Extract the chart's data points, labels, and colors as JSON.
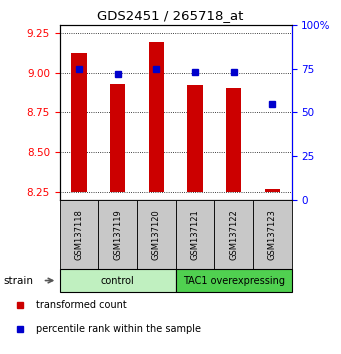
{
  "title": "GDS2451 / 265718_at",
  "samples": [
    "GSM137118",
    "GSM137119",
    "GSM137120",
    "GSM137121",
    "GSM137122",
    "GSM137123"
  ],
  "red_values": [
    9.12,
    8.93,
    9.19,
    8.92,
    8.9,
    8.27
  ],
  "blue_values": [
    75,
    72,
    75,
    73,
    73,
    55
  ],
  "ylim_left": [
    8.2,
    9.3
  ],
  "ylim_right": [
    0,
    100
  ],
  "yticks_left": [
    8.25,
    8.5,
    8.75,
    9.0,
    9.25
  ],
  "yticks_right": [
    0,
    25,
    50,
    75,
    100
  ],
  "ytick_right_labels": [
    "0",
    "25",
    "50",
    "75",
    "100%"
  ],
  "groups": [
    {
      "label": "control",
      "indices": [
        0,
        1,
        2
      ],
      "color": "#c0f0c0"
    },
    {
      "label": "TAC1 overexpressing",
      "indices": [
        3,
        4,
        5
      ],
      "color": "#50d050"
    }
  ],
  "red_color": "#cc0000",
  "blue_color": "#0000cc",
  "bar_bottom": 8.25,
  "legend_red_label": "transformed count",
  "legend_blue_label": "percentile rank within the sample",
  "strain_label": "strain",
  "group_box_color": "#c8c8c8"
}
